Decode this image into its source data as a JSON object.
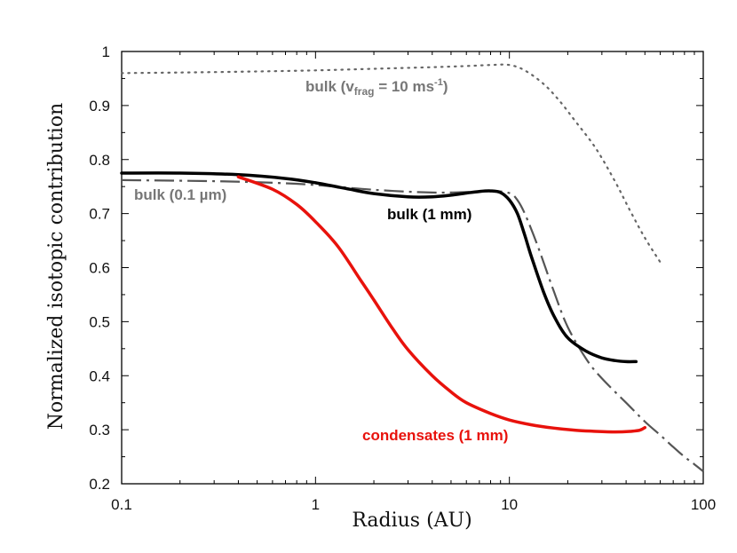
{
  "chart_data": {
    "type": "line",
    "xscale": "log",
    "xlim": [
      0.1,
      100
    ],
    "ylim": [
      0.2,
      1.0
    ],
    "xlabel": "Radius (AU)",
    "ylabel": "Normalized isotopic contribution",
    "grid": false,
    "xticks": [
      {
        "value": 0.1,
        "label": "0.1"
      },
      {
        "value": 1,
        "label": "1"
      },
      {
        "value": 10,
        "label": "10"
      },
      {
        "value": 100,
        "label": "100"
      }
    ],
    "yticks": [
      {
        "value": 0.2,
        "label": "0.2"
      },
      {
        "value": 0.3,
        "label": "0.3"
      },
      {
        "value": 0.4,
        "label": "0.4"
      },
      {
        "value": 0.5,
        "label": "0.5"
      },
      {
        "value": 0.6,
        "label": "0.6"
      },
      {
        "value": 0.7,
        "label": "0.7"
      },
      {
        "value": 0.8,
        "label": "0.8"
      },
      {
        "value": 0.9,
        "label": "0.9"
      },
      {
        "value": 1.0,
        "label": "1"
      }
    ],
    "series": [
      {
        "name": "bulk (v_frag = 10 ms-1)",
        "style": "dotted",
        "color": "#666666",
        "x": [
          0.1,
          0.2,
          0.5,
          1,
          2,
          4,
          6,
          8,
          10,
          12,
          15,
          18,
          22,
          28,
          35,
          42,
          50,
          60
        ],
        "y": [
          0.96,
          0.961,
          0.963,
          0.965,
          0.968,
          0.971,
          0.973,
          0.975,
          0.975,
          0.965,
          0.94,
          0.91,
          0.87,
          0.82,
          0.76,
          0.705,
          0.655,
          0.61
        ]
      },
      {
        "name": "bulk (0.1 µm)",
        "style": "dashdot",
        "color": "#555555",
        "x": [
          0.1,
          0.3,
          0.6,
          1,
          2,
          4,
          6,
          8,
          10,
          11,
          12,
          14,
          17,
          20,
          25,
          30,
          40,
          50,
          60,
          70,
          80,
          90,
          100
        ],
        "y": [
          0.762,
          0.76,
          0.757,
          0.753,
          0.744,
          0.739,
          0.74,
          0.742,
          0.738,
          0.725,
          0.7,
          0.64,
          0.555,
          0.49,
          0.43,
          0.395,
          0.35,
          0.315,
          0.29,
          0.268,
          0.25,
          0.236,
          0.223
        ]
      },
      {
        "name": "bulk (1 mm)",
        "style": "solid",
        "color": "#000000",
        "x": [
          0.1,
          0.2,
          0.4,
          0.7,
          1,
          1.5,
          2,
          3,
          4,
          5,
          6,
          7,
          8,
          9,
          10,
          11,
          12,
          13,
          15,
          17,
          20,
          25,
          30,
          35,
          40,
          45
        ],
        "y": [
          0.775,
          0.775,
          0.772,
          0.765,
          0.757,
          0.745,
          0.737,
          0.731,
          0.731,
          0.734,
          0.738,
          0.741,
          0.742,
          0.739,
          0.725,
          0.7,
          0.66,
          0.62,
          0.555,
          0.51,
          0.47,
          0.445,
          0.433,
          0.428,
          0.426,
          0.426
        ]
      },
      {
        "name": "condensates (1 mm)",
        "style": "solid",
        "color": "#e8120c",
        "x": [
          0.4,
          0.6,
          0.8,
          1,
          1.3,
          1.7,
          2,
          2.5,
          3,
          4,
          5,
          6,
          8,
          10,
          13,
          17,
          22,
          28,
          35,
          42,
          47,
          50
        ],
        "y": [
          0.768,
          0.745,
          0.717,
          0.685,
          0.64,
          0.578,
          0.54,
          0.487,
          0.448,
          0.4,
          0.37,
          0.35,
          0.33,
          0.318,
          0.309,
          0.303,
          0.299,
          0.297,
          0.296,
          0.297,
          0.299,
          0.304
        ]
      }
    ],
    "annotations": [
      {
        "name": "bulk-vfrag",
        "prefix": "bulk (v",
        "sub": "frag",
        "mid": " = 10 ms",
        "sup": "-1",
        "suffix": ")",
        "color": "#777777"
      },
      {
        "name": "bulk-01um",
        "text": "bulk (0.1 µm)",
        "color": "#777777"
      },
      {
        "name": "bulk-1mm",
        "text": "bulk  (1 mm)",
        "color": "#000000"
      },
      {
        "name": "condensates",
        "text": "condensates (1 mm)",
        "color": "#e8120c"
      }
    ]
  }
}
